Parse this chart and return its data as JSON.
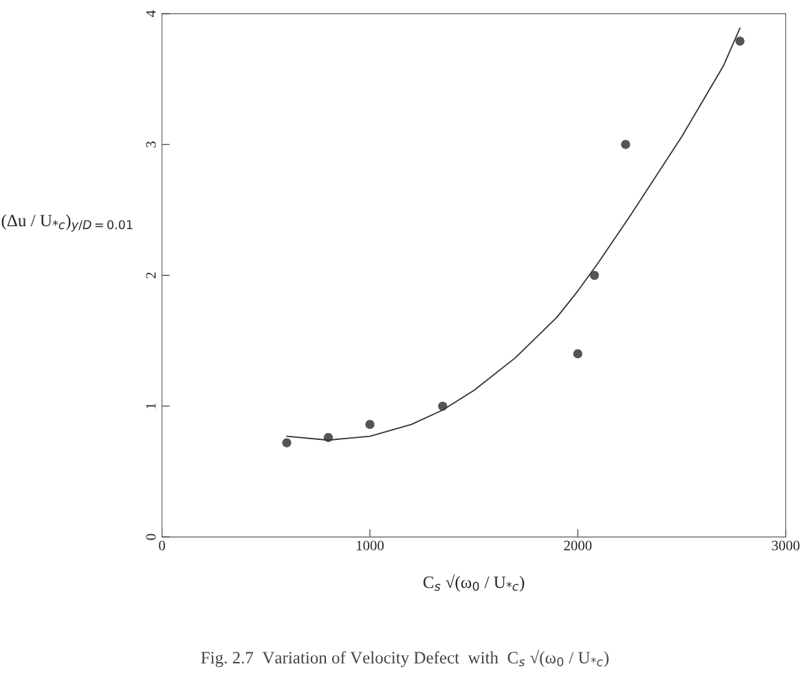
{
  "chart_data": {
    "type": "scatter",
    "xlabel": "C$_{s}$ √(ω$_{0}$ / U$_{*c}$)",
    "ylabel": "(Δu / U$_{*c}$)$_{y/D=0.01}$",
    "annotations": [
      "Fig. 2.7  Variation of Velocity Defect  with  C$_{s}$ √(ω$_{0}$ / U$_{*c}$)"
    ],
    "series": [
      {
        "color": "#555555",
        "marker": "circle",
        "x": [
          600,
          800,
          1000,
          1350,
          2000,
          2080,
          2230,
          2780
        ],
        "values": [
          0.72,
          0.76,
          0.86,
          1.0,
          1.4,
          2.0,
          3.0,
          3.79
        ]
      },
      {
        "type": "line",
        "color": "#333333",
        "marker": "none",
        "line_style": "solid",
        "x": [
          600,
          800,
          1000,
          1200,
          1350,
          1500,
          1700,
          1900,
          2000,
          2100,
          2250,
          2500,
          2700,
          2780
        ],
        "values": [
          0.77,
          0.74,
          0.77,
          0.86,
          0.97,
          1.12,
          1.37,
          1.68,
          1.88,
          2.1,
          2.45,
          3.06,
          3.6,
          3.89
        ]
      }
    ],
    "xlim": [
      0,
      3000
    ],
    "ylim": [
      0,
      4
    ],
    "xticks": [
      0,
      1000,
      2000,
      3000
    ],
    "yticks": [
      0,
      1,
      2,
      3,
      4
    ],
    "grid": false,
    "legend": false
  }
}
